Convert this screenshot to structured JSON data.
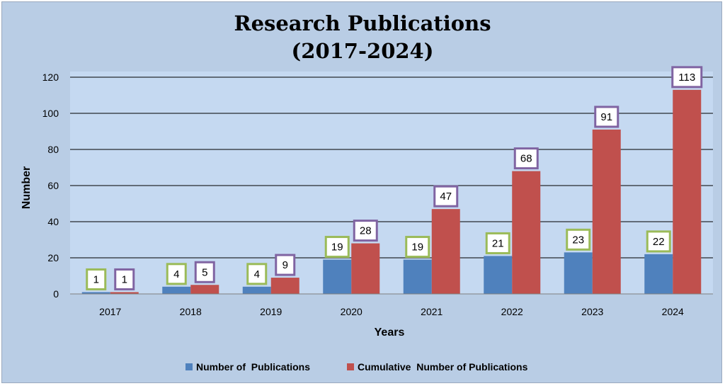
{
  "chart_data": {
    "type": "bar",
    "title_lines": [
      "Research Publications",
      "(2017-2024)"
    ],
    "xlabel": "Years",
    "ylabel": "Number",
    "categories": [
      "2017",
      "2018",
      "2019",
      "2020",
      "2021",
      "2022",
      "2023",
      "2024"
    ],
    "series": [
      {
        "name": "Number of  Publications",
        "values": [
          1,
          4,
          4,
          19,
          19,
          21,
          23,
          22
        ]
      },
      {
        "name": "Cumulative  Number of Publications",
        "values": [
          1,
          5,
          9,
          28,
          47,
          68,
          91,
          113
        ]
      }
    ],
    "ylim": [
      0,
      120
    ],
    "yticks": [
      "0",
      "20",
      "40",
      "60",
      "80",
      "100",
      "120"
    ],
    "grid": true,
    "legend_position": "bottom",
    "data_labels": true,
    "colors": {
      "frame_background": "#b9cde5",
      "plot_background": "#c5d9f1",
      "series": [
        "#4f81bd",
        "#c0504d"
      ],
      "label_borders": [
        "#9bbb59",
        "#8064a2"
      ],
      "gridline": "#000000"
    }
  }
}
